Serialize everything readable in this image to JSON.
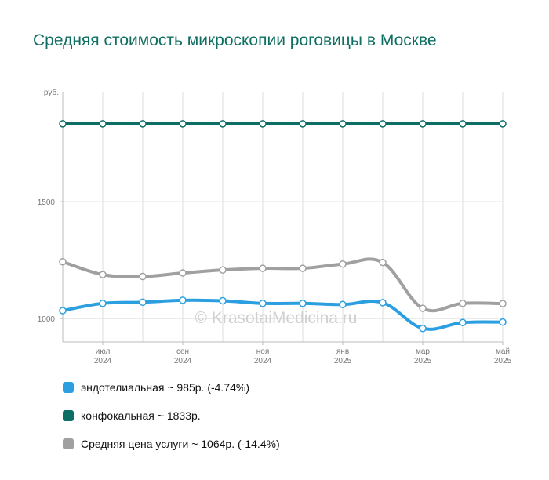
{
  "title": "Средняя стоимость микроскопии роговицы в Москве",
  "watermark": "© KrasotaiMedicina.ru",
  "chart_data": {
    "type": "line",
    "title": "Средняя стоимость микроскопии роговицы в Москве",
    "ylabel": "руб.",
    "xlabel": "",
    "ylim": [
      900,
      1970
    ],
    "yticks": [
      {
        "value": 1000,
        "label": "1000"
      },
      {
        "value": 1500,
        "label": "1500"
      }
    ],
    "x": [
      0,
      1,
      2,
      3,
      4,
      5,
      6,
      7,
      8,
      9,
      10,
      11
    ],
    "xticks": [
      {
        "index": 1,
        "month": "июл",
        "year": "2024"
      },
      {
        "index": 3,
        "month": "сен",
        "year": "2024"
      },
      {
        "index": 5,
        "month": "ноя",
        "year": "2024"
      },
      {
        "index": 7,
        "month": "янв",
        "year": "2025"
      },
      {
        "index": 9,
        "month": "мар",
        "year": "2025"
      },
      {
        "index": 11,
        "month": "май",
        "year": "2025"
      }
    ],
    "grid": true,
    "legend_position": "bottom",
    "series": [
      {
        "name": "эндотелиальная",
        "color": "#2b9fe0",
        "legend": "эндотелиальная ~ 985р. (-4.74%)",
        "values": [
          1034,
          1065,
          1070,
          1078,
          1076,
          1065,
          1065,
          1060,
          1068,
          958,
          983,
          985
        ]
      },
      {
        "name": "конфокальная",
        "color": "#0d6e66",
        "legend": "конфокальная ~ 1833р.",
        "values": [
          1833,
          1833,
          1833,
          1833,
          1833,
          1833,
          1833,
          1833,
          1833,
          1833,
          1833,
          1833
        ]
      },
      {
        "name": "Средняя цена услуги",
        "color": "#a0a0a0",
        "legend": "Средняя цена услуги ~ 1064р. (-14.4%)",
        "values": [
          1243,
          1188,
          1180,
          1195,
          1208,
          1215,
          1215,
          1233,
          1240,
          1044,
          1065,
          1064
        ]
      }
    ]
  }
}
